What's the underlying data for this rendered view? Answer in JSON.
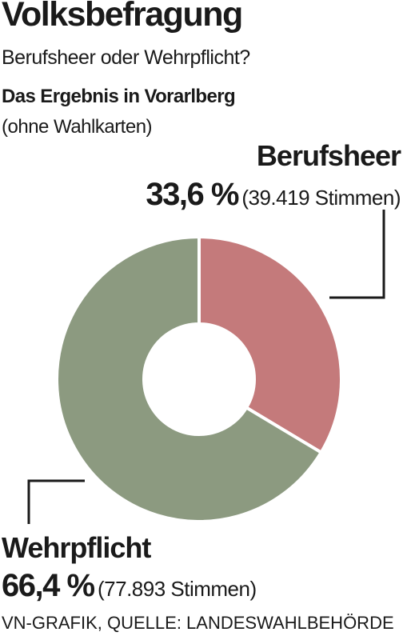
{
  "title": "Volksbefragung",
  "subtitle": "Berufsheer oder Wehrpflicht?",
  "heading": "Das Ergebnis in Vorarlberg",
  "note": "(ohne Wahlkarten)",
  "source": "VN-GRAFIK, QUELLE: LANDESWAHLBEHÖRDE",
  "chart_data": {
    "type": "pie",
    "variant": "donut",
    "start": "top, clockwise",
    "slices": [
      {
        "name": "Berufsheer",
        "value": 33.6,
        "percent_label": "33,6 %",
        "votes_label": "(39.419 Stimmen)",
        "color": "#c47a7b"
      },
      {
        "name": "Wehrpflicht",
        "value": 66.4,
        "percent_label": "66,4 %",
        "votes_label": "(77.893 Stimmen)",
        "color": "#8c9a80"
      }
    ]
  }
}
